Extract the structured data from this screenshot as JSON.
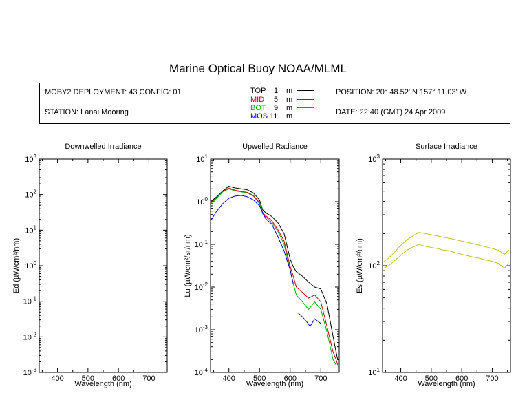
{
  "title": "Marine Optical Buoy NOAA/MLML",
  "info": {
    "deployment": "MOBY2 DEPLOYMENT: 43 CONFIG: 01",
    "station": "STATION: Lanai Mooring",
    "position": "POSITION: 20° 48.52' N   157° 11.03' W",
    "date": "DATE: 22:40 (GMT) 24 Apr 2009"
  },
  "legend": [
    {
      "name": "TOP",
      "depth": "1",
      "unit": "m",
      "color": "#000000"
    },
    {
      "name": "MID",
      "depth": "5",
      "unit": "m",
      "color": "#cc0000"
    },
    {
      "name": "BOT",
      "depth": "9",
      "unit": "m",
      "color": "#00aa00"
    },
    {
      "name": "MOS",
      "depth": "11",
      "unit": "m",
      "color": "#0000cc"
    }
  ],
  "chart_data": [
    {
      "type": "line",
      "title": "Downwelled Irradiance",
      "xlabel": "Wavelength (nm)",
      "ylabel": "Ed  (µW/cm²/nm)",
      "scale": "log",
      "xlim": [
        340,
        760
      ],
      "ylim_exp": [
        -3,
        3
      ],
      "x_ticks": [
        "400",
        "500",
        "600",
        "700"
      ],
      "series": []
    },
    {
      "type": "line",
      "title": "Upwelled Radiance",
      "xlabel": "Wavelength (nm)",
      "ylabel": "Lu  (µW/cm²/sr/nm)",
      "scale": "log",
      "xlim": [
        340,
        760
      ],
      "ylim_exp": [
        -4,
        1
      ],
      "x_ticks": [
        "400",
        "500",
        "600",
        "700"
      ],
      "series": [
        {
          "color": "#000000",
          "x": [
            340,
            360,
            380,
            400,
            420,
            440,
            460,
            480,
            500,
            510,
            520,
            540,
            560,
            580,
            600,
            610,
            620,
            640,
            660,
            680,
            700,
            720,
            740,
            750,
            755
          ],
          "y": [
            1.0,
            1.3,
            1.8,
            2.3,
            2.1,
            2.0,
            1.9,
            1.6,
            1.1,
            0.65,
            0.55,
            0.45,
            0.32,
            0.18,
            0.045,
            0.03,
            0.023,
            0.018,
            0.013,
            0.01,
            0.009,
            0.004,
            0.0007,
            0.0003,
            0.0002
          ]
        },
        {
          "color": "#cc0000",
          "x": [
            340,
            360,
            380,
            400,
            420,
            440,
            460,
            480,
            500,
            510,
            520,
            540,
            560,
            580,
            600,
            610,
            620,
            640,
            660,
            680,
            700,
            720,
            740,
            750,
            755
          ],
          "y": [
            0.95,
            1.25,
            1.75,
            2.1,
            1.85,
            1.75,
            1.65,
            1.4,
            0.95,
            0.55,
            0.47,
            0.36,
            0.22,
            0.12,
            0.03,
            0.018,
            0.01,
            0.0075,
            0.0055,
            0.0065,
            0.0045,
            0.0012,
            0.0003,
            0.0002,
            0.00015
          ]
        },
        {
          "color": "#00aa00",
          "x": [
            340,
            360,
            380,
            400,
            420,
            440,
            460,
            480,
            500,
            510,
            520,
            540,
            560,
            580,
            600,
            610,
            620,
            640,
            660,
            680,
            700,
            720,
            740,
            750
          ],
          "y": [
            0.9,
            1.2,
            1.7,
            2.0,
            1.8,
            1.7,
            1.6,
            1.35,
            0.9,
            0.52,
            0.44,
            0.33,
            0.2,
            0.1,
            0.025,
            0.012,
            0.0065,
            0.0045,
            0.003,
            0.0045,
            0.003,
            0.0009,
            0.0002,
            0.00015
          ]
        },
        {
          "color": "#0000cc",
          "x": [
            340,
            360,
            380,
            400,
            420,
            440,
            460,
            480,
            500,
            520,
            540,
            560,
            580,
            600,
            610
          ],
          "y": [
            0.35,
            0.6,
            0.9,
            1.2,
            1.35,
            1.4,
            1.3,
            1.1,
            0.8,
            0.4,
            0.3,
            0.15,
            0.07,
            0.025,
            0.012
          ]
        },
        {
          "color": "#0000cc",
          "x": [
            625,
            640,
            655,
            665,
            680,
            700
          ],
          "y": [
            0.0025,
            0.002,
            0.0015,
            0.0012,
            0.0018,
            0.0014
          ]
        }
      ]
    },
    {
      "type": "line",
      "title": "Surface Irradiance",
      "xlabel": "Wavelength (nm)",
      "ylabel": "Es  (µW/cm²/nm)",
      "scale": "log",
      "xlim": [
        340,
        760
      ],
      "ylim_exp": [
        1,
        3
      ],
      "x_ticks": [
        "400",
        "500",
        "600",
        "700"
      ],
      "series": [
        {
          "color": "#c8c020",
          "x": [
            345,
            360,
            380,
            400,
            420,
            440,
            460,
            480,
            500,
            520,
            540,
            560,
            580,
            600,
            620,
            640,
            660,
            680,
            700,
            720,
            740,
            755
          ],
          "y": [
            110,
            118,
            135,
            155,
            175,
            190,
            205,
            200,
            195,
            190,
            185,
            180,
            175,
            170,
            165,
            160,
            155,
            150,
            145,
            140,
            128,
            140
          ]
        },
        {
          "color": "#c8c020",
          "x": [
            345,
            360,
            380,
            400,
            420,
            440,
            460,
            480,
            500,
            520,
            540,
            560,
            580,
            600,
            620,
            640,
            660,
            680,
            700,
            720,
            740,
            755
          ],
          "y": [
            95,
            100,
            112,
            125,
            140,
            150,
            158,
            152,
            148,
            145,
            140,
            138,
            132,
            128,
            124,
            120,
            117,
            113,
            110,
            105,
            95,
            105
          ]
        }
      ]
    }
  ]
}
